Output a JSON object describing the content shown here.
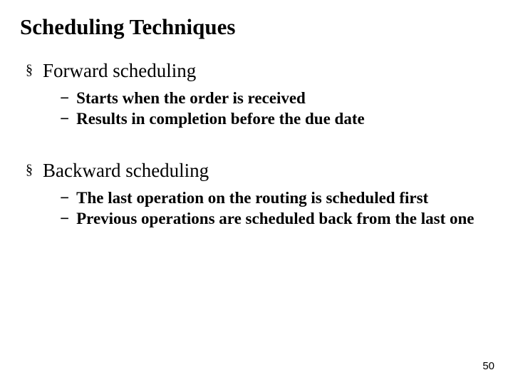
{
  "title": "Scheduling Techniques",
  "sections": [
    {
      "heading": "Forward scheduling",
      "items": [
        "Starts when the order is received",
        "Results in completion before the due date"
      ]
    },
    {
      "heading": "Backward scheduling",
      "items": [
        "The last operation on the routing is scheduled first",
        "Previous operations are scheduled back from the last one"
      ]
    }
  ],
  "page_number": "50",
  "markers": {
    "level1": "§",
    "level2": "−"
  }
}
